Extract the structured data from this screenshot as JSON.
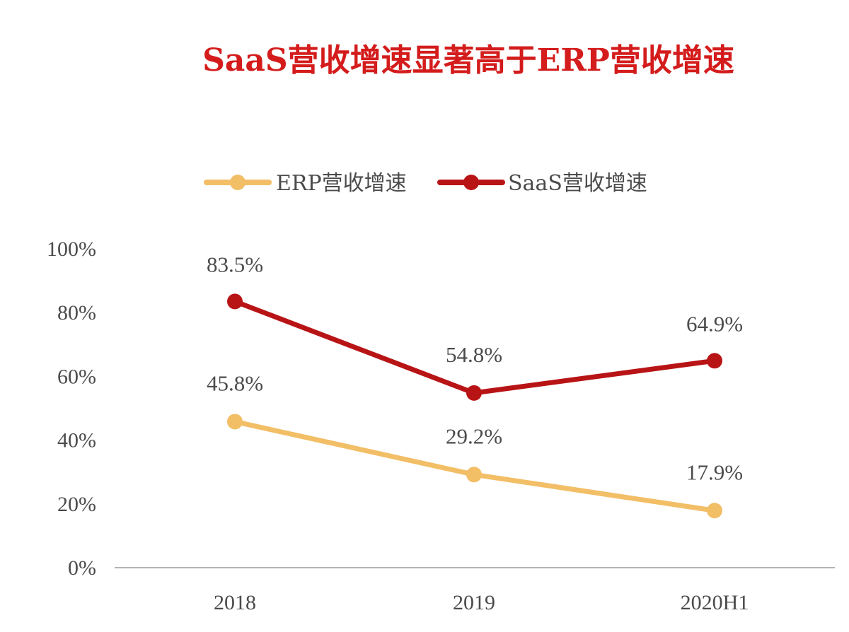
{
  "colors": {
    "title": "#d41c1c",
    "erp": "#f2be66",
    "saas": "#b81416",
    "text": "#4b4b4b",
    "axis": "#b4b4b4"
  },
  "chart_data": {
    "type": "line",
    "title": "SaaS营收增速显著高于ERP营收增速",
    "categories": [
      "2018",
      "2019",
      "2020H1"
    ],
    "series": [
      {
        "name": "ERP营收增速",
        "key": "erp",
        "values": [
          45.8,
          29.2,
          17.9
        ],
        "labels": [
          "45.8%",
          "29.2%",
          "17.9%"
        ]
      },
      {
        "name": "SaaS营收增速",
        "key": "saas",
        "values": [
          83.5,
          54.8,
          64.9
        ],
        "labels": [
          "83.5%",
          "54.8%",
          "64.9%"
        ]
      }
    ],
    "yticks": [
      "0%",
      "20%",
      "40%",
      "60%",
      "80%",
      "100%"
    ],
    "ylim": [
      0,
      100
    ],
    "grid": false,
    "legend": "top-center"
  }
}
